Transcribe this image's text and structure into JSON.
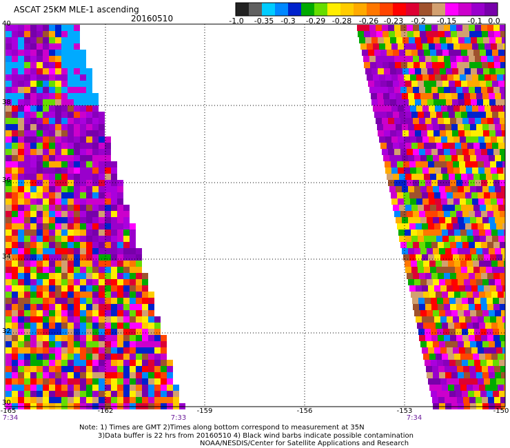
{
  "header": {
    "title": "ASCAT 25KM MLE-1 ascending",
    "date": "20160510"
  },
  "colorbar": {
    "labels": [
      "-1.0",
      "-0.35",
      "-0.3",
      "-0.29",
      "-0.28",
      "-0.26",
      "-0.23",
      "-0.2",
      "-0.15",
      "-0.1",
      "0.0"
    ],
    "colors": [
      "#222222",
      "#606060",
      "#00ccff",
      "#0088ff",
      "#0022cc",
      "#00aa00",
      "#66dd00",
      "#ffee00",
      "#ffcc00",
      "#ffaa00",
      "#ff7700",
      "#ff4400",
      "#ff0000",
      "#dd0033",
      "#a0522d",
      "#d2a070",
      "#ff00ff",
      "#cc00cc",
      "#9900cc",
      "#7700aa"
    ]
  },
  "map": {
    "lat_labels": [
      "40",
      "38",
      "36",
      "34",
      "32",
      "30"
    ],
    "lon_labels": [
      "-165",
      "-162",
      "-159",
      "-156",
      "-153",
      "-150"
    ],
    "time_labels": [
      "7:34",
      "7:33",
      "7:34"
    ]
  },
  "notes": {
    "line1": "Note: 1) Times are GMT 2)Times along bottom correspond to measurement at 35N",
    "line2": "3)Data buffer is 22 hrs from 20160510 4) Black wind barbs indicate possible contamination",
    "line3": "NOAA/NESDIS/Center for Satellite Applications and Research"
  }
}
